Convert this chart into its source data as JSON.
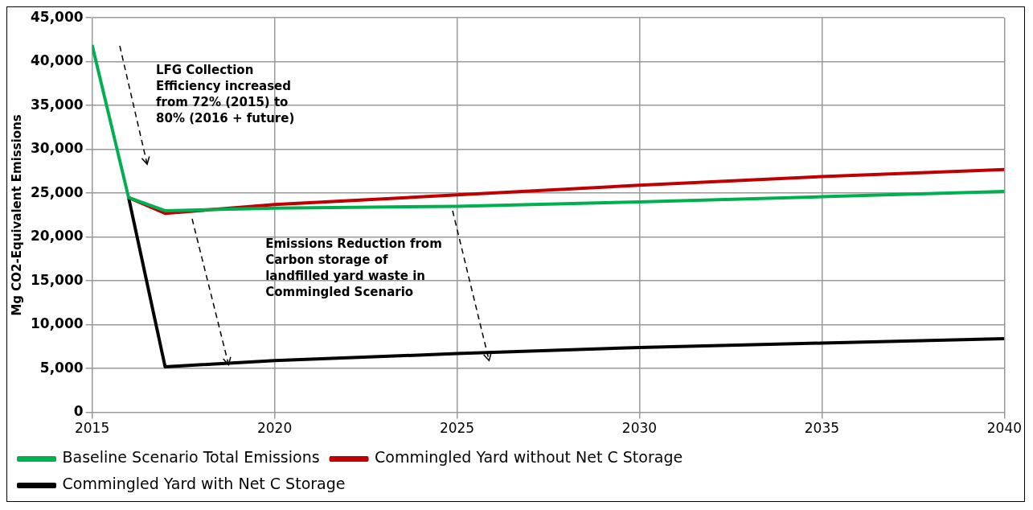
{
  "chart_data": {
    "type": "line",
    "ylabel": "Mg CO2-Equivalent Emissions",
    "xlim": [
      2015,
      2040
    ],
    "xticks": [
      2015,
      2020,
      2025,
      2030,
      2035,
      2040
    ],
    "ylim": [
      0,
      45000
    ],
    "yticks": [
      0,
      {
        "value": 5000,
        "label": "5,000"
      },
      {
        "value": 10000,
        "label": "10,000"
      },
      {
        "value": 15000,
        "label": "15,000"
      },
      {
        "value": 20000,
        "label": "20,000"
      },
      {
        "value": 25000,
        "label": "25,000"
      },
      {
        "value": 30000,
        "label": "30,000"
      },
      {
        "value": 35000,
        "label": "35,000"
      },
      {
        "value": 40000,
        "label": "40,000"
      },
      {
        "value": 45000,
        "label": "45,000"
      }
    ],
    "grid": true,
    "legend": "bottom",
    "marker": "none",
    "line_style": "solid",
    "series": [
      {
        "name": "Baseline Scenario Total Emissions",
        "color": "#00b050",
        "x": [
          2015,
          2016,
          2017,
          2020,
          2025,
          2030,
          2035,
          2040
        ],
        "values": [
          41900,
          24500,
          23000,
          23300,
          23500,
          24000,
          24600,
          25200
        ]
      },
      {
        "name": "Commingled Yard without Net C Storage",
        "color": "#c00000",
        "x": [
          2016,
          2017,
          2020,
          2025,
          2030,
          2035,
          2040
        ],
        "values": [
          24500,
          22700,
          23700,
          24800,
          25900,
          26900,
          27700
        ]
      },
      {
        "name": "Commingled Yard with Net C Storage",
        "color": "#000000",
        "x": [
          2016,
          2017,
          2020,
          2025,
          2030,
          2035,
          2040
        ],
        "values": [
          24500,
          5200,
          5900,
          6700,
          7400,
          7900,
          8400
        ]
      }
    ],
    "annotations": [
      "LFG Collection Efficiency increased from 72% (2015) to 80% (2016 + future)",
      "Emissions Reduction from Carbon storage of landfilled yard waste in Commingled Scenario"
    ]
  }
}
